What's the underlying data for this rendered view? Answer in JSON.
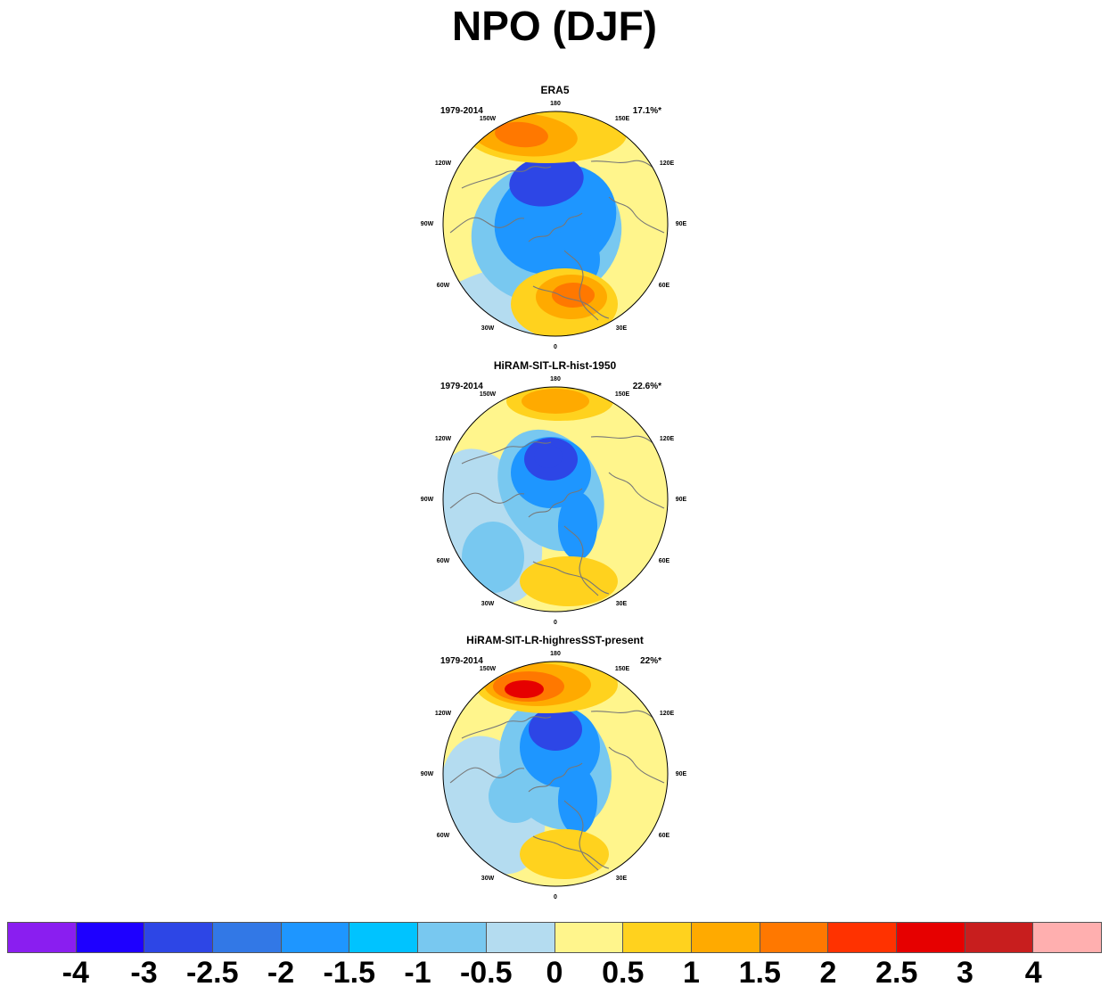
{
  "title": "NPO (DJF)",
  "panels": [
    {
      "name": "ERA5",
      "period": "1979-2014",
      "variance": "17.1%*"
    },
    {
      "name": "HiRAM-SIT-LR-hist-1950",
      "period": "1979-2014",
      "variance": "22.6%*"
    },
    {
      "name": "HiRAM-SIT-LR-highresSST-present",
      "period": "1979-2014",
      "variance": "22%*"
    }
  ],
  "longitude_labels": {
    "top": "180",
    "bottom": "0",
    "upper_left": "150W",
    "upper_right": "150E",
    "left_upper": "120W",
    "right_upper": "120E",
    "left": "90W",
    "right": "90E",
    "left_lower": "60W",
    "right_lower": "60E",
    "lower_left": "30W",
    "lower_right": "30E"
  },
  "colorbar": {
    "colors": [
      "#8a1ef0",
      "#1e00ff",
      "#2d46e6",
      "#3278e6",
      "#1e96ff",
      "#00c3ff",
      "#78c8f0",
      "#b4dcf0",
      "#fff58c",
      "#ffd21e",
      "#ffaa00",
      "#ff7800",
      "#ff3200",
      "#e60000",
      "#c81e1e",
      "#ffafaf"
    ],
    "labels": [
      "-4",
      "-3",
      "-2.5",
      "-2",
      "-1.5",
      "-1",
      "-0.5",
      "0",
      "0.5",
      "1",
      "1.5",
      "2",
      "2.5",
      "3",
      "4"
    ]
  },
  "palette": {
    "neg_strong": "#2d46e6",
    "neg_mid": "#1e96ff",
    "neg_weak": "#78c8f0",
    "neg_faint": "#b4dcf0",
    "pos_faint": "#fff58c",
    "pos_weak": "#ffd21e",
    "pos_mid": "#ffaa00",
    "pos_strong": "#ff7800",
    "red": "#e60000",
    "coast": "#777777"
  }
}
